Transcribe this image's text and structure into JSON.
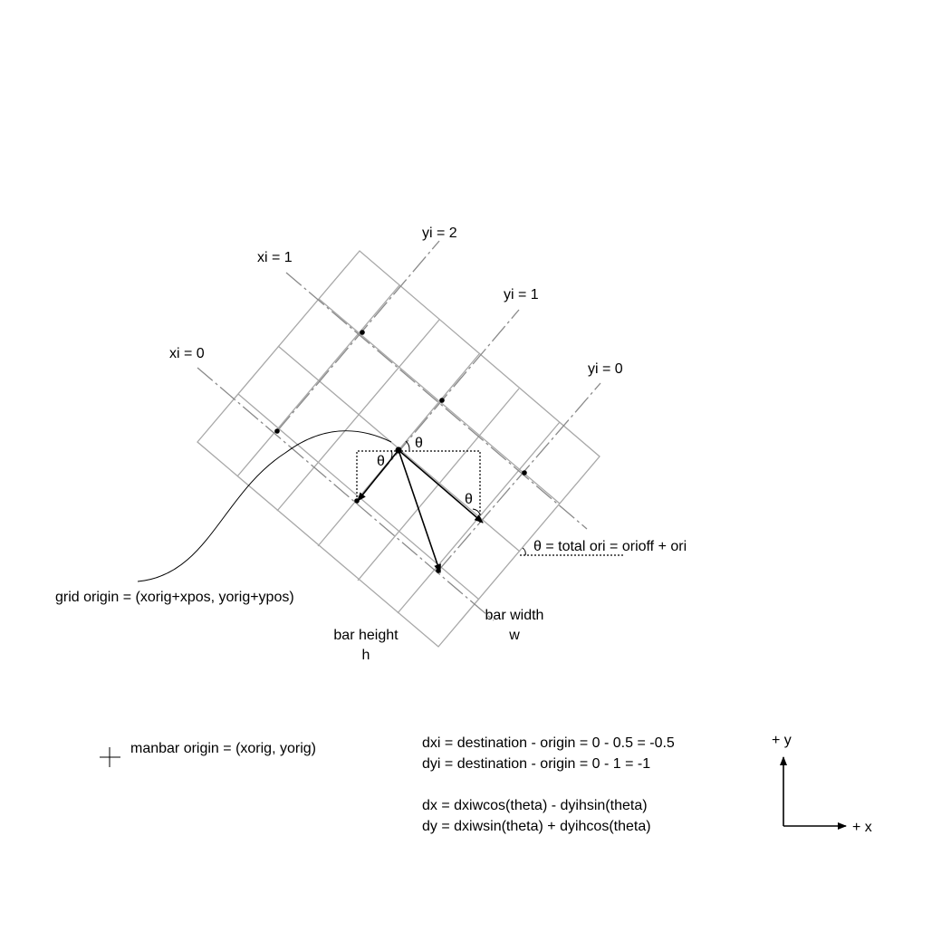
{
  "labels": {
    "xi0": "xi = 0",
    "xi1": "xi = 1",
    "yi0": "yi = 0",
    "yi1": "yi = 1",
    "yi2": "yi = 2",
    "theta": "θ",
    "theta_def": "θ = total ori = orioff + ori",
    "grid_origin": "grid origin = (xorig+xpos, yorig+ypos)",
    "bar_height_1": "bar height",
    "bar_height_2": "h",
    "bar_width_1": "bar width",
    "bar_width_2": "w",
    "manbar_origin": "manbar origin = (xorig, yorig)"
  },
  "equations": {
    "dxi": "dxi = destination - origin = 0 - 0.5 = -0.5",
    "dyi": "dyi = destination - origin = 0 - 1 = -1",
    "dx": "dx = dxiwcos(theta) - dyihsin(theta)",
    "dy": "dy = dxiwsin(theta) + dyihcos(theta)"
  },
  "axes": {
    "plus_y": "+ y",
    "plus_x": "+ x"
  }
}
